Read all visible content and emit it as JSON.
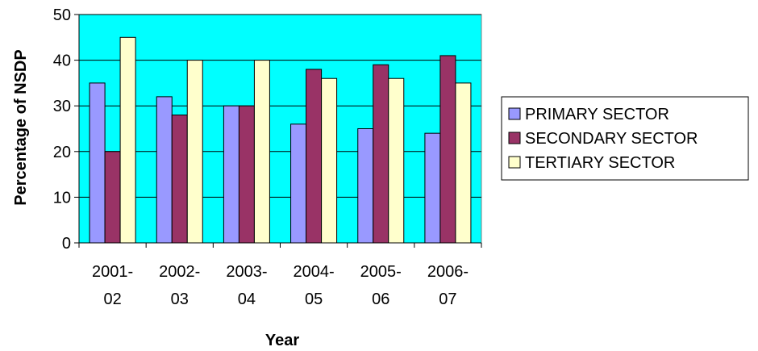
{
  "chart_data": {
    "type": "bar",
    "categories": [
      [
        "2001-",
        "02"
      ],
      [
        "2002-",
        "03"
      ],
      [
        "2003-",
        "04"
      ],
      [
        "2004-",
        "05"
      ],
      [
        "2005-",
        "06"
      ],
      [
        "2006-",
        "07"
      ]
    ],
    "series": [
      {
        "name": "PRIMARY SECTOR",
        "color": "#9999ff",
        "values": [
          35,
          32,
          30,
          26,
          25,
          24
        ]
      },
      {
        "name": "SECONDARY SECTOR",
        "color": "#993366",
        "values": [
          20,
          28,
          30,
          38,
          39,
          41
        ]
      },
      {
        "name": "TERTIARY SECTOR",
        "color": "#ffffcc",
        "values": [
          45,
          40,
          40,
          36,
          36,
          35
        ]
      }
    ],
    "xlabel": "Year",
    "ylabel": "Percentage of NSDP",
    "ylim": [
      0,
      50
    ],
    "yticks": [
      0,
      10,
      20,
      30,
      40,
      50
    ],
    "plot_background": "#00ffff",
    "grid": true,
    "legend_position": "right"
  }
}
